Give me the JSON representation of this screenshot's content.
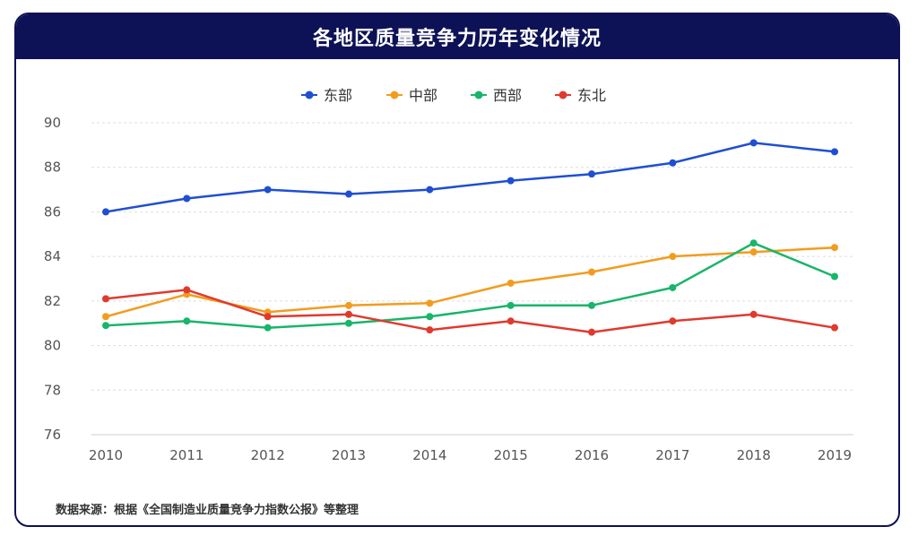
{
  "chart_data": {
    "type": "line",
    "title": "各地区质量竞争力历年变化情况",
    "categories": [
      "2010",
      "2011",
      "2012",
      "2013",
      "2014",
      "2015",
      "2016",
      "2017",
      "2018",
      "2019"
    ],
    "ylim": [
      76,
      90
    ],
    "yticks": [
      76,
      78,
      80,
      82,
      84,
      86,
      88,
      90
    ],
    "grid": true,
    "legend_position": "top-center",
    "series": [
      {
        "name": "东部",
        "color": "#1f4fd1",
        "values": [
          86.0,
          86.6,
          87.0,
          86.8,
          87.0,
          87.4,
          87.7,
          88.2,
          89.1,
          88.7
        ]
      },
      {
        "name": "中部",
        "color": "#f29c1f",
        "values": [
          81.3,
          82.3,
          81.5,
          81.8,
          81.9,
          82.8,
          83.3,
          84.0,
          84.2,
          84.4
        ]
      },
      {
        "name": "西部",
        "color": "#18b56a",
        "values": [
          80.9,
          81.1,
          80.8,
          81.0,
          81.3,
          81.8,
          81.8,
          82.6,
          84.6,
          83.1
        ]
      },
      {
        "name": "东北",
        "color": "#e03a2f",
        "values": [
          82.1,
          82.5,
          81.3,
          81.4,
          80.7,
          81.1,
          80.6,
          81.1,
          81.4,
          80.8
        ]
      }
    ],
    "source": "数据来源：根据《全国制造业质量竞争力指数公报》等整理"
  }
}
